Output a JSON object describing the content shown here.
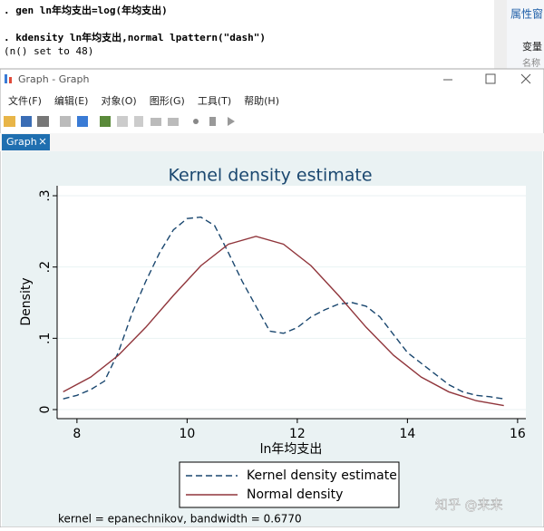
{
  "console": {
    "lines": [
      ". gen ln年均支出=log(年均支出)",
      ". kdensity ln年均支出,normal lpattern(\"dash\")",
      "(n() set to 48)"
    ]
  },
  "side_panel": {
    "title": "属性窗",
    "item": "变量",
    "sub": "名称"
  },
  "window": {
    "title": "Graph - Graph",
    "menu": [
      "文件(F)",
      "编辑(E)",
      "对象(O)",
      "图形(G)",
      "工具(T)",
      "帮助(H)"
    ],
    "tab": "Graph"
  },
  "chart_data": {
    "type": "line",
    "title": "Kernel density estimate",
    "xlabel": "ln年均支出",
    "ylabel": "Density",
    "note": "kernel = epanechnikov, bandwidth = 0.6770",
    "xlim": [
      7.64,
      16.15
    ],
    "ylim": [
      -0.0127,
      0.314
    ],
    "xticks": [
      8,
      10,
      12,
      14,
      16
    ],
    "yticks": [
      0,
      {
        "value": 0.1,
        "label": ".1"
      },
      {
        "value": 0.2,
        "label": ".2"
      },
      {
        "value": 0.3,
        "label": ".3"
      }
    ],
    "grid": true,
    "series": [
      {
        "name": "Kernel density estimate",
        "color": "#1a476f",
        "dash": true,
        "x": [
          7.75,
          8,
          8.25,
          8.5,
          8.75,
          9,
          9.25,
          9.5,
          9.75,
          10,
          10.25,
          10.5,
          10.75,
          11,
          11.25,
          11.5,
          11.75,
          12,
          12.25,
          12.5,
          12.75,
          13,
          13.25,
          13.5,
          13.75,
          14,
          14.25,
          14.5,
          14.75,
          15,
          15.25,
          15.5,
          15.75
        ],
        "values": [
          0.015,
          0.02,
          0.028,
          0.04,
          0.08,
          0.135,
          0.18,
          0.22,
          0.252,
          0.268,
          0.27,
          0.258,
          0.22,
          0.18,
          0.145,
          0.11,
          0.107,
          0.115,
          0.13,
          0.14,
          0.148,
          0.15,
          0.145,
          0.13,
          0.105,
          0.08,
          0.065,
          0.05,
          0.035,
          0.025,
          0.02,
          0.018,
          0.015
        ]
      },
      {
        "name": "Normal density",
        "color": "#90353b",
        "dash": false,
        "x": [
          7.75,
          8.25,
          8.75,
          9.25,
          9.75,
          10.25,
          10.75,
          11.25,
          11.75,
          12.25,
          12.75,
          13.25,
          13.75,
          14.25,
          14.75,
          15.25,
          15.75
        ],
        "values": [
          0.0249,
          0.0456,
          0.076,
          0.1155,
          0.16,
          0.2018,
          0.232,
          0.243,
          0.232,
          0.2018,
          0.16,
          0.1155,
          0.076,
          0.0456,
          0.0249,
          0.0124,
          0.0056
        ]
      }
    ]
  },
  "watermark": "知乎 @来来"
}
